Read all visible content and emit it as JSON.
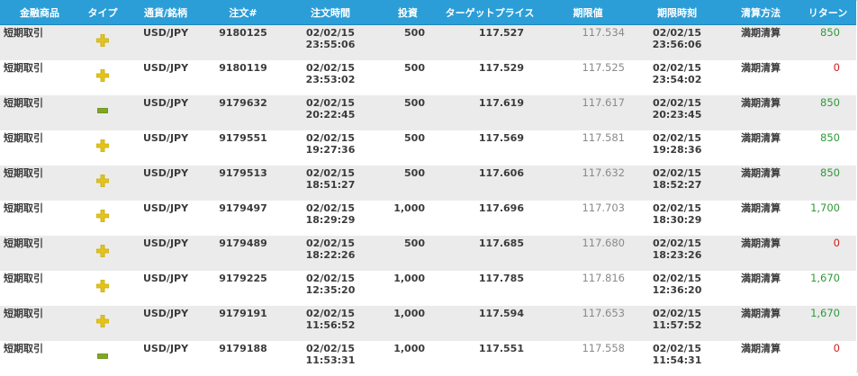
{
  "headers": [
    "金融商品",
    "タイプ",
    "通貨/銘柄",
    "注文#",
    "注文時間",
    "投資",
    "ターゲットプライス",
    "期限値",
    "期限時刻",
    "清算方法",
    "リターン"
  ],
  "rows": [
    {
      "product": "短期取引",
      "type": "plus",
      "symbol": "USD/JPY",
      "order": "9180125",
      "order_date": "02/02/15",
      "order_time": "23:55:06",
      "investment": "500",
      "target": "117.527",
      "expiry_value": "117.534",
      "expiry_date": "02/02/15",
      "expiry_time": "23:56:06",
      "settlement": "満期清算",
      "return": "850",
      "return_color": "green"
    },
    {
      "product": "短期取引",
      "type": "plus",
      "symbol": "USD/JPY",
      "order": "9180119",
      "order_date": "02/02/15",
      "order_time": "23:53:02",
      "investment": "500",
      "target": "117.529",
      "expiry_value": "117.525",
      "expiry_date": "02/02/15",
      "expiry_time": "23:54:02",
      "settlement": "満期清算",
      "return": "0",
      "return_color": "red"
    },
    {
      "product": "短期取引",
      "type": "minus",
      "symbol": "USD/JPY",
      "order": "9179632",
      "order_date": "02/02/15",
      "order_time": "20:22:45",
      "investment": "500",
      "target": "117.619",
      "expiry_value": "117.617",
      "expiry_date": "02/02/15",
      "expiry_time": "20:23:45",
      "settlement": "満期清算",
      "return": "850",
      "return_color": "green"
    },
    {
      "product": "短期取引",
      "type": "plus",
      "symbol": "USD/JPY",
      "order": "9179551",
      "order_date": "02/02/15",
      "order_time": "19:27:36",
      "investment": "500",
      "target": "117.569",
      "expiry_value": "117.581",
      "expiry_date": "02/02/15",
      "expiry_time": "19:28:36",
      "settlement": "満期清算",
      "return": "850",
      "return_color": "green"
    },
    {
      "product": "短期取引",
      "type": "plus",
      "symbol": "USD/JPY",
      "order": "9179513",
      "order_date": "02/02/15",
      "order_time": "18:51:27",
      "investment": "500",
      "target": "117.606",
      "expiry_value": "117.632",
      "expiry_date": "02/02/15",
      "expiry_time": "18:52:27",
      "settlement": "満期清算",
      "return": "850",
      "return_color": "green"
    },
    {
      "product": "短期取引",
      "type": "plus",
      "symbol": "USD/JPY",
      "order": "9179497",
      "order_date": "02/02/15",
      "order_time": "18:29:29",
      "investment": "1,000",
      "target": "117.696",
      "expiry_value": "117.703",
      "expiry_date": "02/02/15",
      "expiry_time": "18:30:29",
      "settlement": "満期清算",
      "return": "1,700",
      "return_color": "green"
    },
    {
      "product": "短期取引",
      "type": "plus",
      "symbol": "USD/JPY",
      "order": "9179489",
      "order_date": "02/02/15",
      "order_time": "18:22:26",
      "investment": "500",
      "target": "117.685",
      "expiry_value": "117.680",
      "expiry_date": "02/02/15",
      "expiry_time": "18:23:26",
      "settlement": "満期清算",
      "return": "0",
      "return_color": "red"
    },
    {
      "product": "短期取引",
      "type": "plus",
      "symbol": "USD/JPY",
      "order": "9179225",
      "order_date": "02/02/15",
      "order_time": "12:35:20",
      "investment": "1,000",
      "target": "117.785",
      "expiry_value": "117.816",
      "expiry_date": "02/02/15",
      "expiry_time": "12:36:20",
      "settlement": "満期清算",
      "return": "1,670",
      "return_color": "green"
    },
    {
      "product": "短期取引",
      "type": "plus",
      "symbol": "USD/JPY",
      "order": "9179191",
      "order_date": "02/02/15",
      "order_time": "11:56:52",
      "investment": "1,000",
      "target": "117.594",
      "expiry_value": "117.653",
      "expiry_date": "02/02/15",
      "expiry_time": "11:57:52",
      "settlement": "満期清算",
      "return": "1,670",
      "return_color": "green"
    },
    {
      "product": "短期取引",
      "type": "minus",
      "symbol": "USD/JPY",
      "order": "9179188",
      "order_date": "02/02/15",
      "order_time": "11:53:31",
      "investment": "1,000",
      "target": "117.551",
      "expiry_value": "117.558",
      "expiry_date": "02/02/15",
      "expiry_time": "11:54:31",
      "settlement": "満期清算",
      "return": "0",
      "return_color": "red"
    }
  ],
  "icons": {
    "plus": "plus-icon",
    "minus": "minus-icon"
  },
  "colors": {
    "header_bg": "#2b9ed8",
    "plus_icon": "#e3c41a",
    "minus_icon": "#7ea81e",
    "green": "#2e9a38",
    "red": "#d01c1c"
  }
}
